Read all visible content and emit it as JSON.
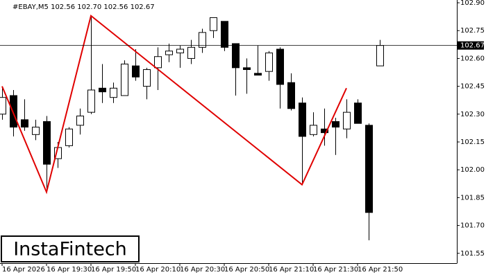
{
  "chart_data": {
    "type": "candlestick",
    "title": "#EBAY,M5  102.56 102.70 102.56 102.67",
    "watermark": "InstaFintech",
    "categories": [
      "16 Apr 2026",
      null,
      null,
      null,
      "16 Apr 19:30",
      null,
      null,
      null,
      "16 Apr 19:50",
      null,
      null,
      null,
      "16 Apr 20:10",
      null,
      null,
      null,
      "16 Apr 20:30",
      null,
      null,
      null,
      "16 Apr 20:50",
      null,
      null,
      null,
      "16 Apr 21:10",
      null,
      null,
      null,
      "16 Apr 21:30",
      null,
      null,
      null,
      "16 Apr 21:50",
      null,
      null
    ],
    "open": [
      102.3,
      102.4,
      102.27,
      102.19,
      102.26,
      102.06,
      102.13,
      102.24,
      102.31,
      102.44,
      102.39,
      102.4,
      102.56,
      102.45,
      102.55,
      102.62,
      102.63,
      102.6,
      102.66,
      102.75,
      102.8,
      102.68,
      102.55,
      102.52,
      102.53,
      102.65,
      102.47,
      102.36,
      102.19,
      102.22,
      102.26,
      102.22,
      102.36,
      102.24,
      102.56
    ],
    "high": [
      102.45,
      102.43,
      102.38,
      102.27,
      102.29,
      102.15,
      102.23,
      102.33,
      102.83,
      102.57,
      102.47,
      102.59,
      102.65,
      102.55,
      102.66,
      102.68,
      102.67,
      102.7,
      102.76,
      102.82,
      102.8,
      102.68,
      102.6,
      102.67,
      102.64,
      102.66,
      102.52,
      102.39,
      102.31,
      102.33,
      102.28,
      102.38,
      102.38,
      102.25,
      102.7
    ],
    "low": [
      102.27,
      102.18,
      102.21,
      102.16,
      101.89,
      102.01,
      102.12,
      102.19,
      102.3,
      102.36,
      102.36,
      102.4,
      102.48,
      102.38,
      102.43,
      102.58,
      102.55,
      102.57,
      102.63,
      102.71,
      102.64,
      102.4,
      102.41,
      102.51,
      102.48,
      102.33,
      102.32,
      101.93,
      102.18,
      102.13,
      102.08,
      102.17,
      102.25,
      101.62,
      102.56
    ],
    "close": [
      102.39,
      102.23,
      102.23,
      102.23,
      102.03,
      102.12,
      102.22,
      102.29,
      102.43,
      102.42,
      102.44,
      102.57,
      102.5,
      102.54,
      102.61,
      102.64,
      102.65,
      102.66,
      102.74,
      102.82,
      102.66,
      102.55,
      102.54,
      102.51,
      102.63,
      102.46,
      102.33,
      102.18,
      102.24,
      102.2,
      102.23,
      102.31,
      102.25,
      101.77,
      102.67
    ],
    "up_color": "#ffffff",
    "down_color": "#000000",
    "pattern": {
      "color": "#e00000",
      "x": [
        0,
        4,
        8,
        27,
        31
      ],
      "values": [
        102.45,
        101.88,
        102.83,
        101.92,
        102.44
      ]
    },
    "current_price": 102.67,
    "ylim": [
      101.497,
      102.915
    ],
    "yticks": [
      {
        "value": 102.9,
        "label": "102.90"
      },
      102.75,
      {
        "value": 102.6,
        "label": "102.60"
      },
      102.45,
      {
        "value": 102.3,
        "label": "102.30"
      },
      102.15,
      {
        "value": 102.0,
        "label": "102.00"
      },
      101.85,
      {
        "value": 101.7,
        "label": "101.70"
      },
      101.55
    ]
  }
}
